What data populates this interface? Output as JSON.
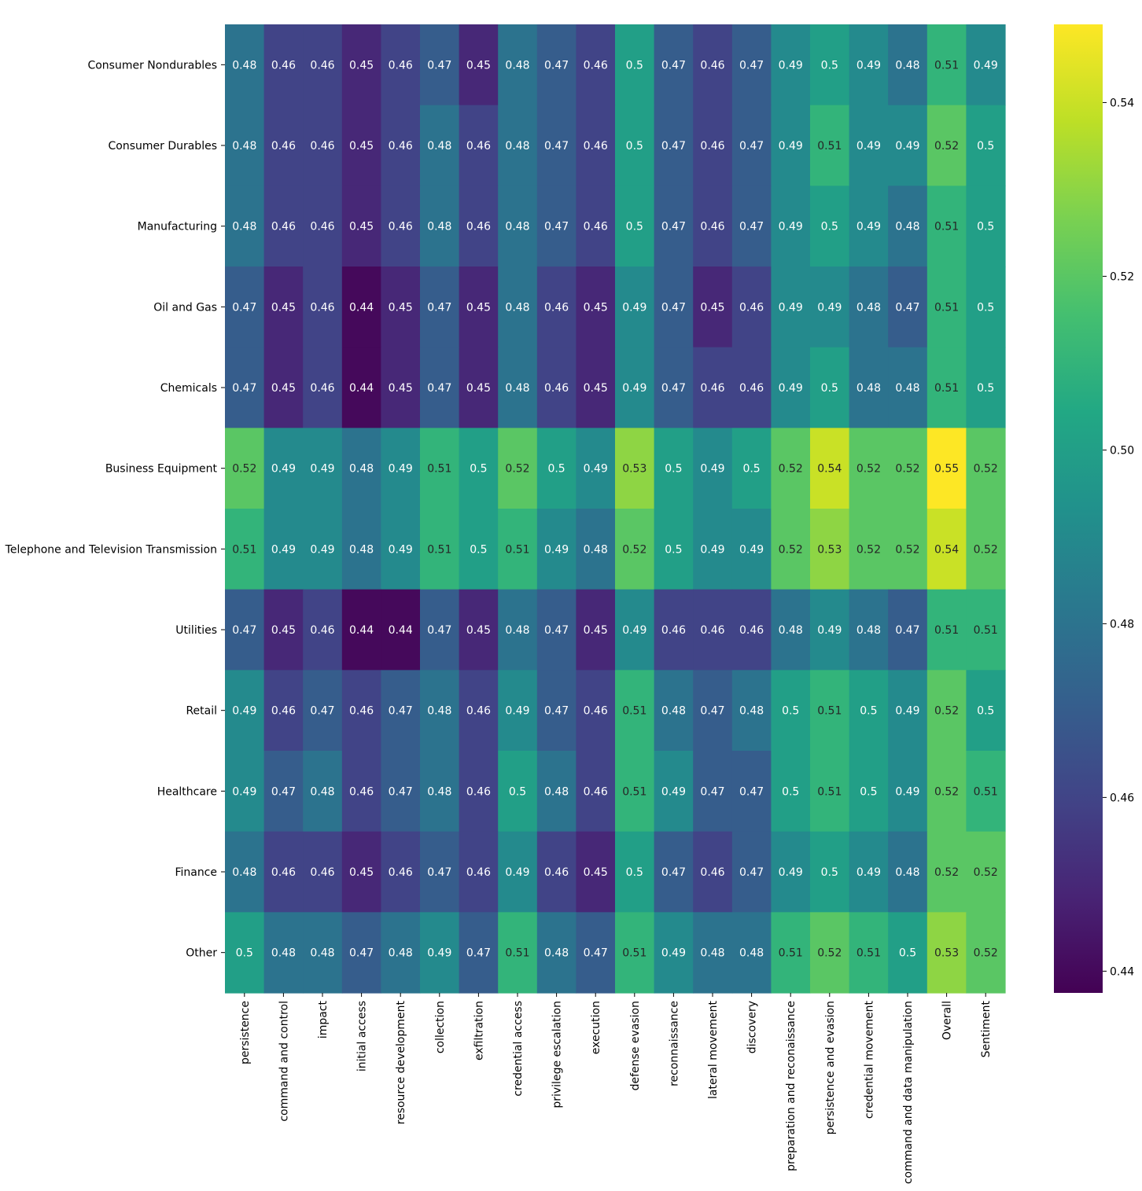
{
  "chart_data": {
    "type": "heatmap",
    "title": "",
    "xlabel": "",
    "ylabel": "",
    "colormap": "viridis",
    "vmin": 0.4375,
    "vmax": 0.549,
    "rows": [
      "Consumer Nondurables",
      "Consumer Durables",
      "Manufacturing",
      "Oil and Gas",
      "Chemicals",
      "Business Equipment",
      "Telephone and Television Transmission",
      "Utilities",
      "Retail",
      "Healthcare",
      "Finance",
      "Other"
    ],
    "columns": [
      "persistence",
      "command and control",
      "impact",
      "initial access",
      "resource development",
      "collection",
      "exfiltration",
      "credential access",
      "privilege escalation",
      "execution",
      "defense evasion",
      "reconnaissance",
      "lateral movement",
      "discovery",
      "preparation and reconaissance",
      "persistence and evasion",
      "credential movement",
      "command and data manipulation",
      "Overall",
      "Sentiment"
    ],
    "values": [
      [
        0.48,
        0.46,
        0.46,
        0.45,
        0.46,
        0.47,
        0.45,
        0.48,
        0.47,
        0.46,
        0.5,
        0.47,
        0.46,
        0.47,
        0.49,
        0.5,
        0.49,
        0.48,
        0.51,
        0.49
      ],
      [
        0.48,
        0.46,
        0.46,
        0.45,
        0.46,
        0.48,
        0.46,
        0.48,
        0.47,
        0.46,
        0.5,
        0.47,
        0.46,
        0.47,
        0.49,
        0.51,
        0.49,
        0.49,
        0.52,
        0.5
      ],
      [
        0.48,
        0.46,
        0.46,
        0.45,
        0.46,
        0.48,
        0.46,
        0.48,
        0.47,
        0.46,
        0.5,
        0.47,
        0.46,
        0.47,
        0.49,
        0.5,
        0.49,
        0.48,
        0.51,
        0.5
      ],
      [
        0.47,
        0.45,
        0.46,
        0.44,
        0.45,
        0.47,
        0.45,
        0.48,
        0.46,
        0.45,
        0.49,
        0.47,
        0.45,
        0.46,
        0.49,
        0.49,
        0.48,
        0.47,
        0.51,
        0.5
      ],
      [
        0.47,
        0.45,
        0.46,
        0.44,
        0.45,
        0.47,
        0.45,
        0.48,
        0.46,
        0.45,
        0.49,
        0.47,
        0.46,
        0.46,
        0.49,
        0.5,
        0.48,
        0.48,
        0.51,
        0.5
      ],
      [
        0.52,
        0.49,
        0.49,
        0.48,
        0.49,
        0.51,
        0.5,
        0.52,
        0.5,
        0.49,
        0.53,
        0.5,
        0.49,
        0.5,
        0.52,
        0.54,
        0.52,
        0.52,
        0.55,
        0.52
      ],
      [
        0.51,
        0.49,
        0.49,
        0.48,
        0.49,
        0.51,
        0.5,
        0.51,
        0.49,
        0.48,
        0.52,
        0.5,
        0.49,
        0.49,
        0.52,
        0.53,
        0.52,
        0.52,
        0.54,
        0.52
      ],
      [
        0.47,
        0.45,
        0.46,
        0.44,
        0.44,
        0.47,
        0.45,
        0.48,
        0.47,
        0.45,
        0.49,
        0.46,
        0.46,
        0.46,
        0.48,
        0.49,
        0.48,
        0.47,
        0.51,
        0.51
      ],
      [
        0.49,
        0.46,
        0.47,
        0.46,
        0.47,
        0.48,
        0.46,
        0.49,
        0.47,
        0.46,
        0.51,
        0.48,
        0.47,
        0.48,
        0.5,
        0.51,
        0.5,
        0.49,
        0.52,
        0.5
      ],
      [
        0.49,
        0.47,
        0.48,
        0.46,
        0.47,
        0.48,
        0.46,
        0.5,
        0.48,
        0.46,
        0.51,
        0.49,
        0.47,
        0.47,
        0.5,
        0.51,
        0.5,
        0.49,
        0.52,
        0.51
      ],
      [
        0.48,
        0.46,
        0.46,
        0.45,
        0.46,
        0.47,
        0.46,
        0.49,
        0.46,
        0.45,
        0.5,
        0.47,
        0.46,
        0.47,
        0.49,
        0.5,
        0.49,
        0.48,
        0.52,
        0.52
      ],
      [
        0.5,
        0.48,
        0.48,
        0.47,
        0.48,
        0.49,
        0.47,
        0.51,
        0.48,
        0.47,
        0.51,
        0.49,
        0.48,
        0.48,
        0.51,
        0.52,
        0.51,
        0.5,
        0.53,
        0.52
      ]
    ],
    "colorbar": {
      "ticks": [
        0.44,
        0.46,
        0.48,
        0.5,
        0.52,
        0.54
      ],
      "tick_labels": [
        "0.44",
        "0.46",
        "0.48",
        "0.50",
        "0.52",
        "0.54"
      ],
      "range": [
        0.4375,
        0.549
      ]
    }
  }
}
